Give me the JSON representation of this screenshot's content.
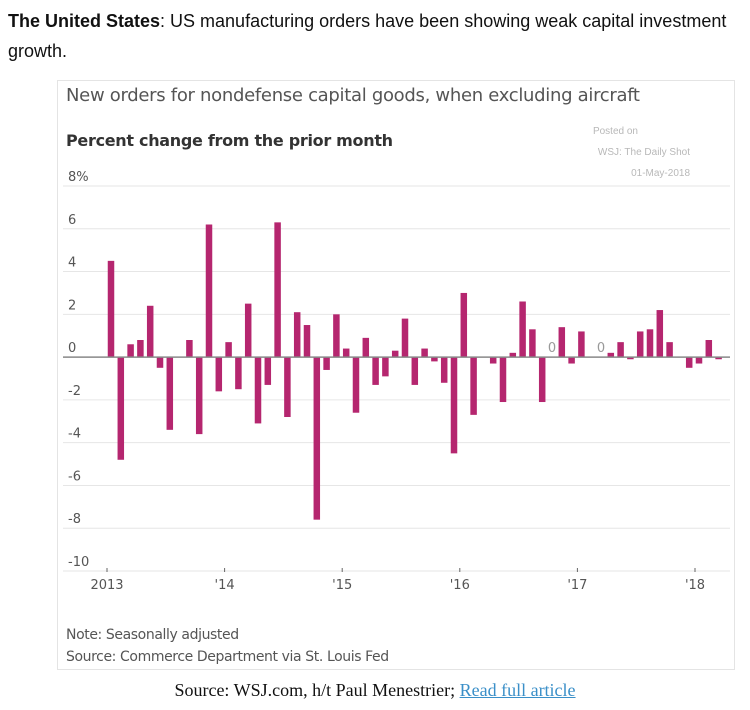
{
  "intro": {
    "bold": "The United States",
    "text": ": US manufacturing orders have been showing weak capital investment growth."
  },
  "posted": {
    "line1": "Posted on",
    "line2": "WSJ: The Daily Shot",
    "line3": "01-May-2018"
  },
  "notes": {
    "note": "Note: Seasonally adjusted",
    "source": "Source: Commerce Department via St. Louis Fed"
  },
  "credit": {
    "text": "Source: WSJ.com, h/t Paul Menestrier; ",
    "link": "Read full article"
  },
  "colors": {
    "bar": "#b5266f",
    "grid": "#e6e6e6",
    "zero": "#888888",
    "axis_text": "#555555"
  },
  "chart_data": {
    "type": "bar",
    "title": "New orders for nondefense capital goods, when excluding aircraft",
    "subtitle": "Percent change from the prior month",
    "xlabel": "",
    "ylabel": "",
    "ylim": [
      -10,
      8
    ],
    "yticks": [
      8,
      6,
      4,
      2,
      0,
      -2,
      -4,
      -6,
      -8,
      -10
    ],
    "ytick_labels": [
      "8%",
      "6",
      "4",
      "2",
      "0",
      "-2",
      "-4",
      "-6",
      "-8",
      "-10"
    ],
    "xtick_labels": [
      "2013",
      "'14",
      "'15",
      "'16",
      "'17",
      "'18"
    ],
    "xtick_month_index": [
      0,
      12,
      24,
      36,
      48,
      60
    ],
    "grid": true,
    "legend": "none",
    "annotations": [
      {
        "text": "0",
        "month_index": 45
      },
      {
        "text": "0",
        "month_index": 50
      }
    ],
    "categories": [
      "2013-01",
      "2013-02",
      "2013-03",
      "2013-04",
      "2013-05",
      "2013-06",
      "2013-07",
      "2013-08",
      "2013-09",
      "2013-10",
      "2013-11",
      "2013-12",
      "2014-01",
      "2014-02",
      "2014-03",
      "2014-04",
      "2014-05",
      "2014-06",
      "2014-07",
      "2014-08",
      "2014-09",
      "2014-10",
      "2014-11",
      "2014-12",
      "2015-01",
      "2015-02",
      "2015-03",
      "2015-04",
      "2015-05",
      "2015-06",
      "2015-07",
      "2015-08",
      "2015-09",
      "2015-10",
      "2015-11",
      "2015-12",
      "2016-01",
      "2016-02",
      "2016-03",
      "2016-04",
      "2016-05",
      "2016-06",
      "2016-07",
      "2016-08",
      "2016-09",
      "2016-10",
      "2016-11",
      "2016-12",
      "2017-01",
      "2017-02",
      "2017-03",
      "2017-04",
      "2017-05",
      "2017-06",
      "2017-07",
      "2017-08",
      "2017-09",
      "2017-10",
      "2017-11",
      "2017-12",
      "2018-01",
      "2018-02",
      "2018-03"
    ],
    "values": [
      4.5,
      -4.8,
      0.6,
      0.8,
      2.4,
      -0.5,
      -3.4,
      0.0,
      0.8,
      -3.6,
      6.2,
      -1.6,
      0.7,
      -1.5,
      2.5,
      -3.1,
      -1.3,
      6.3,
      -2.8,
      2.1,
      1.5,
      -7.6,
      -0.6,
      2.0,
      0.4,
      -2.6,
      0.9,
      -1.3,
      -0.9,
      0.3,
      1.8,
      -1.3,
      0.4,
      -0.2,
      -1.2,
      -4.5,
      3.0,
      -2.7,
      0.0,
      -0.3,
      -2.1,
      0.2,
      2.6,
      1.3,
      -2.1,
      0.0,
      1.4,
      -0.3,
      1.2,
      0.0,
      0.0,
      0.2,
      0.7,
      -0.1,
      1.2,
      1.3,
      2.2,
      0.7,
      0.0,
      -0.5,
      -0.3,
      0.8,
      -0.1
    ]
  }
}
